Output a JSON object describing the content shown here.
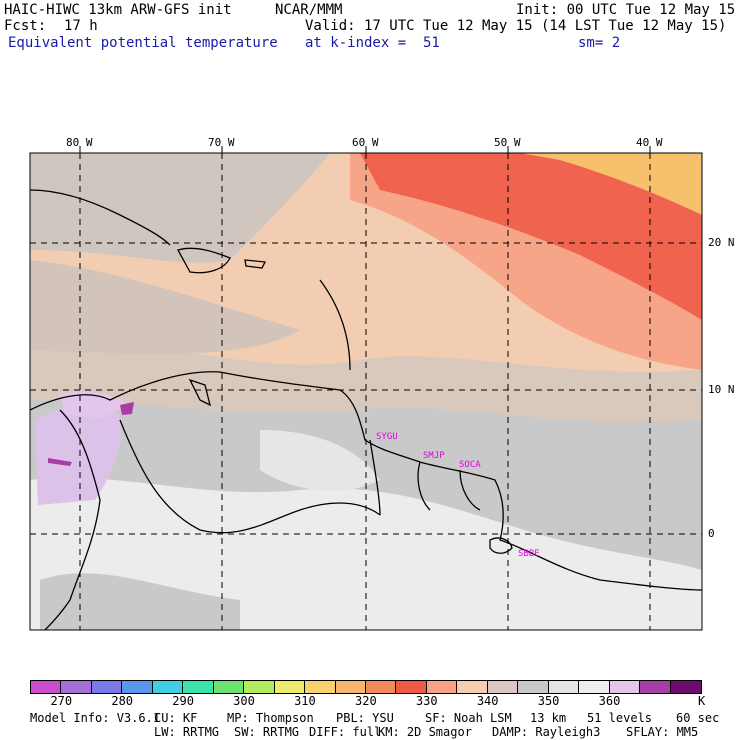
{
  "header": {
    "model": "HAIC-HIWC 13km ARW-GFS init",
    "org": "NCAR/MMM",
    "init": "Init: 00 UTC Tue 12 May 15",
    "fcst_label": "Fcst:",
    "fcst_value": "17 h",
    "valid": "Valid: 17 UTC Tue 12 May 15 (14 LST Tue 12 May 15)",
    "field": "Equivalent potential temperature",
    "level": "at k-index =  51",
    "smoothing": "sm= 2"
  },
  "map": {
    "lon_labels": [
      "80 W",
      "70 W",
      "60 W",
      "50 W",
      "40 W"
    ],
    "lat_labels": [
      "20 N",
      "10 N",
      "0"
    ],
    "stations": [
      "SYGU",
      "SMJP",
      "SOCA",
      "SBBE"
    ],
    "colors": {
      "station": "#e600e6",
      "frame": "#000000",
      "grid": "#000000"
    }
  },
  "colorbar": {
    "unit": "K",
    "tick_labels": [
      "270",
      "280",
      "290",
      "300",
      "310",
      "320",
      "330",
      "340",
      "350",
      "360"
    ],
    "colors": [
      "#c94fd0",
      "#a56fd8",
      "#7b7be8",
      "#5a96ec",
      "#3fcfe0",
      "#3fe3a8",
      "#6fe36f",
      "#b2ec5f",
      "#ecec6f",
      "#f8d26e",
      "#f6b66e",
      "#f28a5c",
      "#ee5a4a",
      "#f8a088",
      "#f7ccb0",
      "#d8c8c0",
      "#c8c8c8",
      "#e4e4e4",
      "#eeeeee",
      "#e3c6ea",
      "#a63ea6",
      "#6e0c6e"
    ]
  },
  "footer": {
    "line1": [
      "Model Info: V3.6.1",
      "CU: KF",
      "MP: Thompson",
      "PBL: YSU",
      "SF: Noah LSM",
      "13 km",
      "51 levels",
      "60 sec"
    ],
    "line2": [
      "LW: RRTMG",
      "SW: RRTMG",
      "DIFF: full",
      "KM: 2D Smagor",
      "DAMP: Rayleigh3",
      "SFLAY: MM5"
    ]
  }
}
